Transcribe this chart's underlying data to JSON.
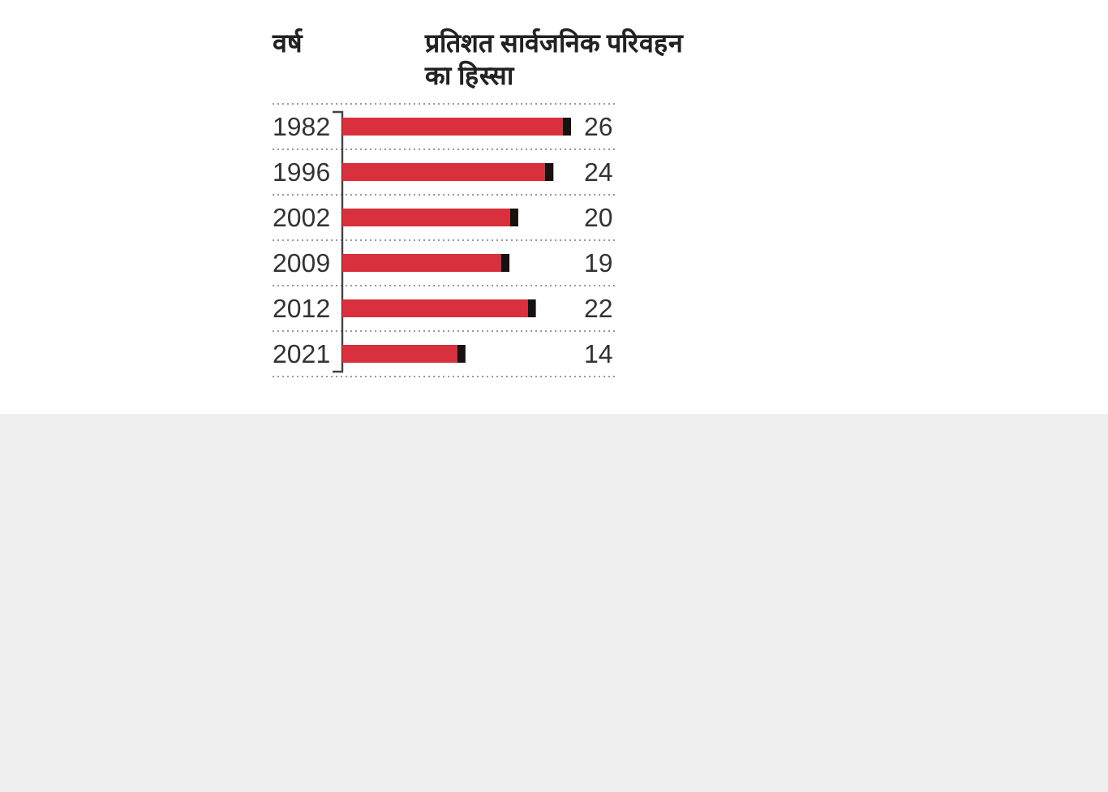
{
  "chart_data": {
    "type": "bar",
    "orientation": "horizontal",
    "title": "प्रतिशत सार्वजनिक परिवहन का हिस्सा",
    "ylabel": "वर्ष",
    "categories": [
      "1982",
      "1996",
      "2002",
      "2009",
      "2012",
      "2021"
    ],
    "values": [
      26,
      24,
      20,
      19,
      22,
      14
    ],
    "color": "#d8303c",
    "data_labels": true,
    "grid": "y"
  }
}
